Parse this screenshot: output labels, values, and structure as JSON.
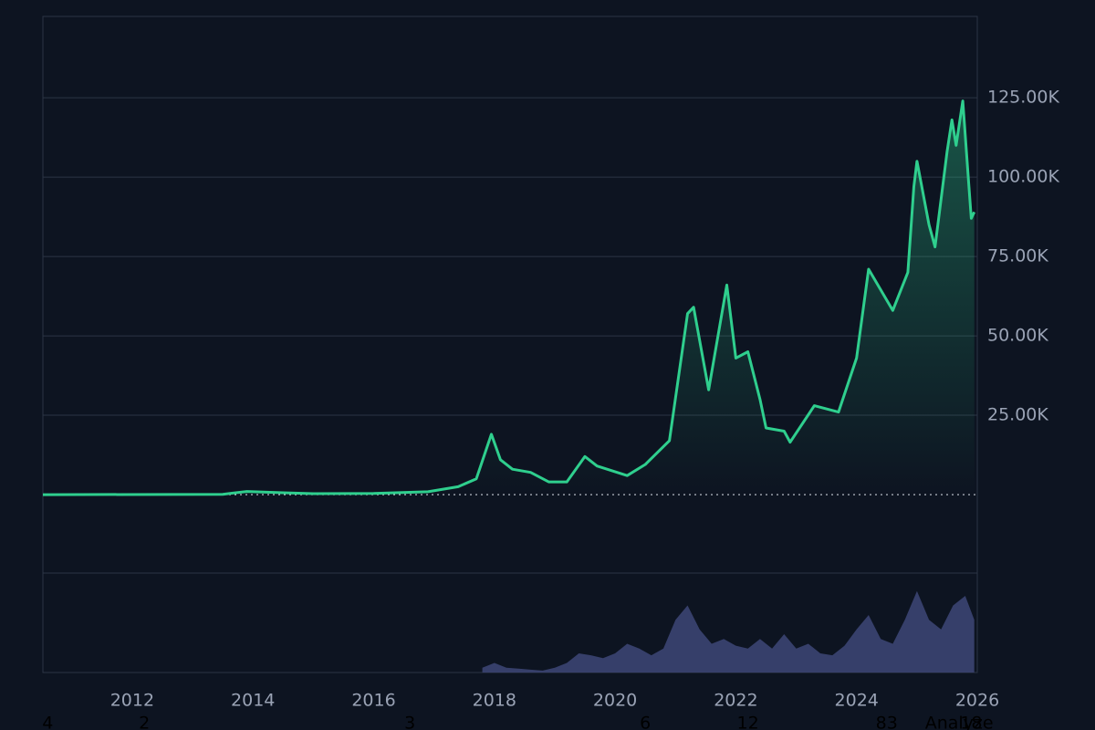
{
  "chart_data": {
    "type": "line",
    "color": "#2fcf8e",
    "x": [
      2010.52,
      2013.5,
      2013.9,
      2014.5,
      2015,
      2016,
      2016.9,
      2017.4,
      2017.7,
      2017.95,
      2018.1,
      2018.3,
      2018.6,
      2018.9,
      2019.2,
      2019.5,
      2019.7,
      2020.2,
      2020.5,
      2020.9,
      2021.2,
      2021.3,
      2021.55,
      2021.85,
      2022.0,
      2022.2,
      2022.4,
      2022.5,
      2022.8,
      2022.9,
      2023.3,
      2023.7,
      2024.0,
      2024.2,
      2024.6,
      2024.85,
      2024.95,
      2025.0,
      2025.2,
      2025.3,
      2025.5,
      2025.58,
      2025.65,
      2025.76,
      2025.85,
      2025.9,
      2025.95
    ],
    "values": [
      0,
      100,
      1000,
      600,
      300,
      400,
      900,
      2500,
      5000,
      19000,
      11000,
      8000,
      7000,
      4000,
      4000,
      12000,
      9000,
      6000,
      9500,
      17000,
      57000,
      59000,
      33000,
      66000,
      43000,
      45000,
      30000,
      21000,
      20000,
      16500,
      28000,
      26000,
      43000,
      71000,
      58000,
      70000,
      97000,
      105000,
      85000,
      78000,
      108000,
      118000,
      110000,
      124000,
      100000,
      87000,
      89000
    ],
    "xlim": [
      2010.52,
      2026
    ],
    "xticks": [
      2012,
      2014,
      2016,
      2018,
      2020,
      2022,
      2024,
      2026
    ],
    "ylim": [
      -24700,
      150600
    ],
    "yticks": [
      {
        "value": 25000,
        "label": "25.00K"
      },
      {
        "value": 50000,
        "label": "50.00K"
      },
      {
        "value": 75000,
        "label": "75.00K"
      },
      {
        "value": 100000,
        "label": "100.00K"
      },
      {
        "value": 125000,
        "label": "125.00K"
      }
    ],
    "grid": true,
    "volume": {
      "color": "#3b4472",
      "x": [
        2017.8,
        2018,
        2018.2,
        2018.4,
        2018.6,
        2018.8,
        2019,
        2019.2,
        2019.4,
        2019.6,
        2019.8,
        2020,
        2020.2,
        2020.4,
        2020.6,
        2020.8,
        2021,
        2021.2,
        2021.4,
        2021.6,
        2021.8,
        2022,
        2022.2,
        2022.4,
        2022.6,
        2022.8,
        2023,
        2023.2,
        2023.4,
        2023.6,
        2023.8,
        2024,
        2024.2,
        2024.4,
        2024.6,
        2024.8,
        2025,
        2025.2,
        2025.4,
        2025.6,
        2025.8,
        2025.95
      ],
      "values": [
        5,
        10,
        5,
        4,
        3,
        2,
        5,
        10,
        20,
        18,
        15,
        20,
        30,
        25,
        18,
        25,
        55,
        70,
        45,
        30,
        35,
        28,
        25,
        35,
        25,
        40,
        25,
        30,
        20,
        18,
        28,
        45,
        60,
        35,
        30,
        55,
        85,
        55,
        45,
        70,
        80,
        55
      ],
      "ylim": [
        0,
        100
      ]
    },
    "markers": [
      {
        "x": 2010.6,
        "label": "4"
      },
      {
        "x": 2012.2,
        "label": "2"
      },
      {
        "x": 2016.6,
        "label": "3"
      },
      {
        "x": 2020.5,
        "label": "6"
      },
      {
        "x": 2022.2,
        "label": "12"
      },
      {
        "x": 2024.5,
        "label": "83"
      },
      {
        "x": 2025.7,
        "label": "Analyze"
      },
      {
        "x": 2025.9,
        "label": "18"
      }
    ]
  }
}
